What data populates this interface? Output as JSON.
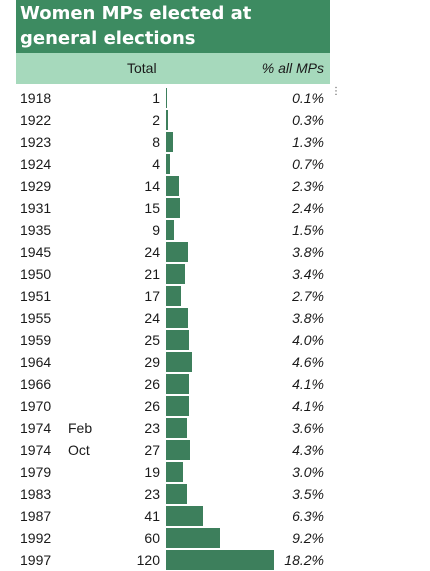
{
  "title": "Women MPs elected at general elections",
  "header": {
    "total_label": "Total",
    "pct_label": "% all MPs"
  },
  "chart_data": {
    "type": "bar",
    "title": "Women MPs elected at general elections",
    "columns": [
      "Total",
      "% all MPs"
    ],
    "rows": [
      {
        "year": "1918",
        "month": "",
        "total": 1,
        "pct": "0.1%"
      },
      {
        "year": "1922",
        "month": "",
        "total": 2,
        "pct": "0.3%"
      },
      {
        "year": "1923",
        "month": "",
        "total": 8,
        "pct": "1.3%"
      },
      {
        "year": "1924",
        "month": "",
        "total": 4,
        "pct": "0.7%"
      },
      {
        "year": "1929",
        "month": "",
        "total": 14,
        "pct": "2.3%"
      },
      {
        "year": "1931",
        "month": "",
        "total": 15,
        "pct": "2.4%"
      },
      {
        "year": "1935",
        "month": "",
        "total": 9,
        "pct": "1.5%"
      },
      {
        "year": "1945",
        "month": "",
        "total": 24,
        "pct": "3.8%"
      },
      {
        "year": "1950",
        "month": "",
        "total": 21,
        "pct": "3.4%"
      },
      {
        "year": "1951",
        "month": "",
        "total": 17,
        "pct": "2.7%"
      },
      {
        "year": "1955",
        "month": "",
        "total": 24,
        "pct": "3.8%"
      },
      {
        "year": "1959",
        "month": "",
        "total": 25,
        "pct": "4.0%"
      },
      {
        "year": "1964",
        "month": "",
        "total": 29,
        "pct": "4.6%"
      },
      {
        "year": "1966",
        "month": "",
        "total": 26,
        "pct": "4.1%"
      },
      {
        "year": "1970",
        "month": "",
        "total": 26,
        "pct": "4.1%"
      },
      {
        "year": "1974",
        "month": "Feb",
        "total": 23,
        "pct": "3.6%"
      },
      {
        "year": "1974",
        "month": "Oct",
        "total": 27,
        "pct": "4.3%"
      },
      {
        "year": "1979",
        "month": "",
        "total": 19,
        "pct": "3.0%"
      },
      {
        "year": "1983",
        "month": "",
        "total": 23,
        "pct": "3.5%"
      },
      {
        "year": "1987",
        "month": "",
        "total": 41,
        "pct": "6.3%"
      },
      {
        "year": "1992",
        "month": "",
        "total": 60,
        "pct": "9.2%"
      },
      {
        "year": "1997",
        "month": "",
        "total": 120,
        "pct": "18.2%"
      }
    ]
  },
  "colors": {
    "title_bg": "#3d8b61",
    "header_bg": "#a6d9bc",
    "bar": "#3d7f5c"
  }
}
